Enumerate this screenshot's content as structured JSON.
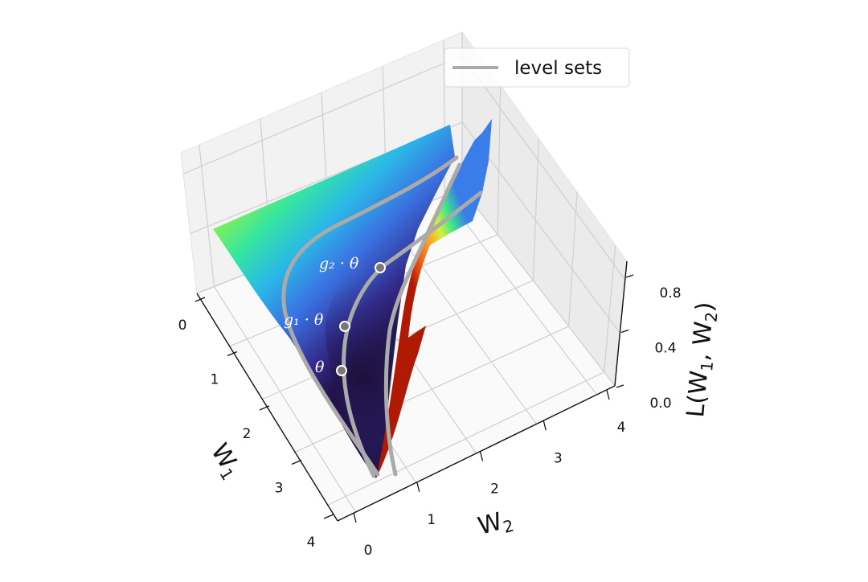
{
  "chart_data": {
    "type": "surface",
    "title": "",
    "xlabel": "W_1",
    "ylabel": "W_2",
    "zlabel": "L(W_1, W_2)",
    "x_ticks": [
      "0",
      "1",
      "2",
      "3",
      "4"
    ],
    "y_ticks": [
      "0",
      "1",
      "2",
      "3",
      "4"
    ],
    "z_ticks": [
      "0.0",
      "0.4",
      "0.8"
    ],
    "xlim": [
      0,
      4
    ],
    "ylim": [
      0,
      4
    ],
    "zlim": [
      0,
      0.8
    ],
    "colormap": "turbo",
    "grid": true,
    "legend": {
      "position": "top-right",
      "entries": [
        {
          "label": "level sets",
          "color": "#aaaaaa"
        }
      ]
    },
    "annotations": [
      {
        "label": "θ"
      },
      {
        "label": "g₁ · θ"
      },
      {
        "label": "g₂ · θ"
      }
    ],
    "level_set_color": "#aaaaaa",
    "point_color": "#777777"
  }
}
